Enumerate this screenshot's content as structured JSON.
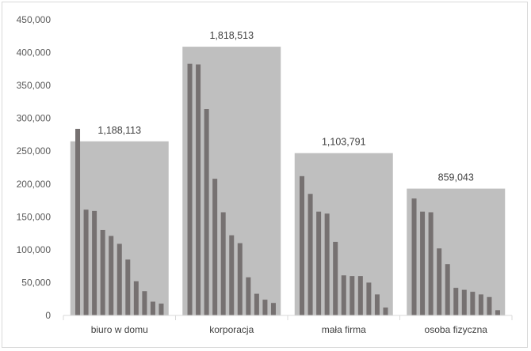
{
  "chart_data": {
    "type": "bar",
    "title": "",
    "xlabel": "",
    "ylabel": "",
    "ylim": [
      0,
      450000
    ],
    "yticks": [
      "0",
      "50,000",
      "100,000",
      "150,000",
      "200,000",
      "250,000",
      "300,000",
      "350,000",
      "400,000",
      "450,000"
    ],
    "grid": false,
    "legend": "none",
    "colors": {
      "group_background": "#bfbfbf",
      "bar": "#767171",
      "axis": "#d9d9d9"
    },
    "categories": [
      "biuro w domu",
      "korporacja",
      "mała firma",
      "osoba fizyczna"
    ],
    "groups": [
      {
        "category": "biuro w domu",
        "total": 1188113,
        "total_label": "1,188,113",
        "background_value": 265000,
        "values": [
          284000,
          161000,
          159000,
          130000,
          121000,
          109000,
          85000,
          52000,
          37000,
          21000,
          18000
        ]
      },
      {
        "category": "korporacja",
        "total": 1818513,
        "total_label": "1,818,513",
        "background_value": 409000,
        "values": [
          383000,
          382000,
          314000,
          208000,
          157000,
          122000,
          110000,
          58000,
          33000,
          24000,
          19000
        ]
      },
      {
        "category": "mała firma",
        "total": 1103791,
        "total_label": "1,103,791",
        "background_value": 247000,
        "values": [
          212000,
          185000,
          158000,
          155000,
          112000,
          61000,
          60000,
          60000,
          50000,
          32000,
          12000
        ]
      },
      {
        "category": "osoba fizyczna",
        "total": 859043,
        "total_label": "859,043",
        "background_value": 193000,
        "values": [
          178000,
          158000,
          157000,
          102000,
          78000,
          42000,
          39000,
          36000,
          32000,
          28000,
          8000
        ]
      }
    ]
  }
}
